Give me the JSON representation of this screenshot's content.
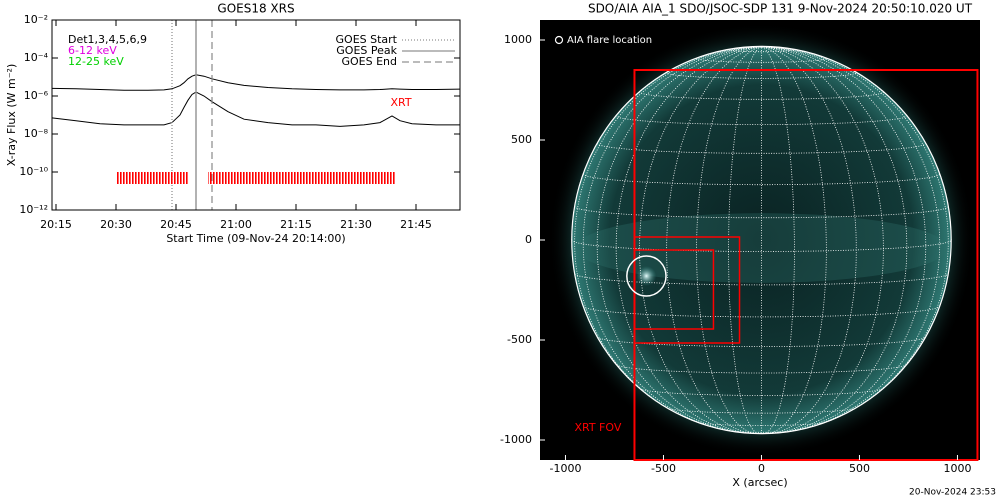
{
  "chart_data": [
    {
      "type": "line",
      "title": "GOES18 XRS",
      "ylabel": "X-ray Flux (W m⁻²)",
      "xlabel": "Start Time (09-Nov-24 20:14:00)",
      "ylog": true,
      "x": [
        "20:14",
        "20:20",
        "20:26",
        "20:32",
        "20:38",
        "20:42",
        "20:44",
        "20:46",
        "20:47",
        "20:48",
        "20:49",
        "20:50",
        "20:52",
        "20:54",
        "20:58",
        "21:02",
        "21:08",
        "21:14",
        "21:20",
        "21:26",
        "21:32",
        "21:36",
        "21:39",
        "21:41",
        "21:44",
        "21:50",
        "21:56"
      ],
      "series": [
        {
          "color": "#000000",
          "values": [
            2.5e-06,
            2.4e-06,
            2.2e-06,
            2e-06,
            2e-06,
            2.1e-06,
            2.4e-06,
            3.5e-06,
            5e-06,
            8e-06,
            1.1e-05,
            1.3e-05,
            1.1e-05,
            8e-06,
            5e-06,
            3.6e-06,
            2.8e-06,
            2.4e-06,
            2.2e-06,
            2.1e-06,
            2.1e-06,
            2.2e-06,
            2.4e-06,
            2.3e-06,
            2.2e-06,
            2.2e-06,
            2.3e-06
          ]
        },
        {
          "color": "#000000",
          "values": [
            7e-08,
            5e-08,
            3.5e-08,
            3e-08,
            3e-08,
            3e-08,
            4e-08,
            1e-07,
            2.5e-07,
            6e-07,
            1.2e-06,
            1.6e-06,
            1e-06,
            5e-07,
            1.5e-07,
            6e-08,
            4e-08,
            3e-08,
            3e-08,
            2.5e-08,
            3e-08,
            4e-08,
            9e-08,
            5e-08,
            3.5e-08,
            3e-08,
            3e-08
          ]
        }
      ],
      "labels": [
        {
          "text": "Det1,3,4,5,6,9",
          "color": "#000000"
        },
        {
          "text": "6-12 keV",
          "color": "#e000e0"
        },
        {
          "text": "12-25 keV",
          "color": "#00d000"
        }
      ],
      "events": [
        {
          "name": "GOES Start",
          "time": "20:44",
          "style": "dotted"
        },
        {
          "name": "GOES Peak",
          "time": "20:50",
          "style": "solid"
        },
        {
          "name": "GOES End",
          "time": "20:54",
          "style": "dashed"
        }
      ],
      "xrt": {
        "label": "XRT",
        "color": "#ff0000",
        "intervals": [
          [
            "20:30",
            "20:48"
          ],
          [
            "20:53",
            "21:40"
          ]
        ]
      },
      "xlim": [
        "20:14",
        "21:56"
      ],
      "xticks": [
        "20:15",
        "20:30",
        "20:45",
        "21:00",
        "21:15",
        "21:30",
        "21:45"
      ],
      "ylim": [
        1e-12,
        0.01
      ],
      "yticks": [
        {
          "value": 1e-12,
          "label": "10⁻¹²"
        },
        {
          "value": 1e-10,
          "label": "10⁻¹⁰"
        },
        {
          "value": 1e-08,
          "label": "10⁻⁸"
        },
        {
          "value": 1e-06,
          "label": "10⁻⁶"
        },
        {
          "value": 0.0001,
          "label": "10⁻⁴"
        },
        {
          "value": 0.01,
          "label": "10⁻²"
        }
      ]
    },
    {
      "type": "image",
      "title": "SDO/AIA AIA_1 SDO/JSOC-SDP 131  9-Nov-2024 20:50:10.020 UT",
      "xlabel": "X (arcsec)",
      "xlim": [
        -1130,
        1115
      ],
      "ylim": [
        -1100,
        1100
      ],
      "xticks": [
        -1000,
        -500,
        0,
        500,
        1000
      ],
      "yticks": [
        -1000,
        -500,
        0,
        500,
        1000
      ],
      "sun_radius": 968,
      "boxes": [
        {
          "name": "XRT FOV",
          "color": "#ff0000",
          "x": [
            -648,
            1102
          ],
          "y": [
            -1100,
            850
          ]
        },
        {
          "color": "#ff0000",
          "x": [
            -648,
            -112
          ],
          "y": [
            -515,
            15
          ]
        },
        {
          "color": "#ff0000",
          "x": [
            -648,
            -245
          ],
          "y": [
            -445,
            -50
          ]
        }
      ],
      "flare": {
        "label": "AIA flare location",
        "x": -587,
        "y": -180,
        "r": 100
      }
    }
  ],
  "footer": "20-Nov-2024 23:53"
}
